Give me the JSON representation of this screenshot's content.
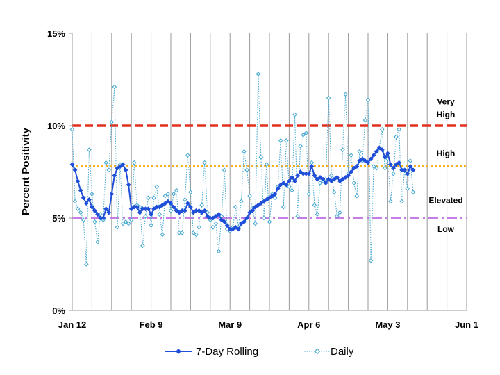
{
  "chart_data": {
    "type": "line",
    "ylabel": "Percent Positivity",
    "y_ticks": [
      "0%",
      "5%",
      "10%",
      "15%"
    ],
    "ylim": [
      0,
      15
    ],
    "x_ticks": [
      "Jan 12",
      "Feb 9",
      "Mar 9",
      "Apr 6",
      "May 3",
      "Jun 1"
    ],
    "x_tick_days": [
      0,
      28,
      56,
      84,
      112,
      140
    ],
    "xlim": [
      0,
      140
    ],
    "grid": "vertical",
    "legend_position": "bottom",
    "thresholds": [
      {
        "value": 10,
        "color": "#e2301e",
        "style": "dashed"
      },
      {
        "value": 7.8,
        "color": "#f5b324",
        "style": "dotted"
      },
      {
        "value": 5,
        "color": "#c77de6",
        "style": "dashdot"
      }
    ],
    "levels": [
      {
        "text": "Very",
        "y": 11.3
      },
      {
        "text": "High",
        "y": 10.6
      },
      {
        "text": "High",
        "y": 8.5
      },
      {
        "text": "Elevated",
        "y": 5.95
      },
      {
        "text": "Low",
        "y": 4.4
      }
    ],
    "series": [
      {
        "name": "7-Day Rolling",
        "color": "#1f4fd8",
        "marker": "diamond",
        "points": [
          [
            0,
            7.9
          ],
          [
            1,
            7.6
          ],
          [
            2,
            7.0
          ],
          [
            3,
            6.5
          ],
          [
            4,
            6.1
          ],
          [
            5,
            5.8
          ],
          [
            6,
            6.0
          ],
          [
            7,
            5.6
          ],
          [
            8,
            5.4
          ],
          [
            9,
            5.2
          ],
          [
            10,
            5.0
          ],
          [
            11,
            5.0
          ],
          [
            12,
            5.5
          ],
          [
            13,
            5.3
          ],
          [
            14,
            6.3
          ],
          [
            15,
            7.3
          ],
          [
            16,
            7.7
          ],
          [
            17,
            7.8
          ],
          [
            18,
            7.9
          ],
          [
            19,
            7.6
          ],
          [
            20,
            6.8
          ],
          [
            21,
            5.5
          ],
          [
            22,
            5.6
          ],
          [
            23,
            5.6
          ],
          [
            24,
            5.3
          ],
          [
            25,
            5.5
          ],
          [
            26,
            5.5
          ],
          [
            27,
            5.5
          ],
          [
            28,
            5.2
          ],
          [
            29,
            5.5
          ],
          [
            30,
            5.6
          ],
          [
            31,
            5.6
          ],
          [
            32,
            5.7
          ],
          [
            33,
            5.8
          ],
          [
            34,
            5.9
          ],
          [
            35,
            5.8
          ],
          [
            36,
            5.6
          ],
          [
            37,
            5.4
          ],
          [
            38,
            5.3
          ],
          [
            39,
            5.4
          ],
          [
            40,
            5.4
          ],
          [
            41,
            5.8
          ],
          [
            42,
            5.6
          ],
          [
            43,
            5.3
          ],
          [
            44,
            5.4
          ],
          [
            45,
            5.4
          ],
          [
            46,
            5.3
          ],
          [
            47,
            5.4
          ],
          [
            48,
            5.1
          ],
          [
            49,
            5.0
          ],
          [
            50,
            5.0
          ],
          [
            51,
            5.1
          ],
          [
            52,
            5.2
          ],
          [
            53,
            4.9
          ],
          [
            54,
            4.8
          ],
          [
            55,
            4.6
          ],
          [
            56,
            4.4
          ],
          [
            57,
            4.4
          ],
          [
            58,
            4.5
          ],
          [
            59,
            4.4
          ],
          [
            60,
            4.7
          ],
          [
            61,
            4.8
          ],
          [
            62,
            5.0
          ],
          [
            63,
            5.3
          ],
          [
            64,
            5.4
          ],
          [
            65,
            5.6
          ],
          [
            66,
            5.7
          ],
          [
            67,
            5.8
          ],
          [
            68,
            5.9
          ],
          [
            69,
            6.0
          ],
          [
            70,
            6.1
          ],
          [
            71,
            6.2
          ],
          [
            72,
            6.3
          ],
          [
            73,
            6.6
          ],
          [
            74,
            6.8
          ],
          [
            75,
            6.9
          ],
          [
            76,
            6.8
          ],
          [
            77,
            7.0
          ],
          [
            78,
            7.2
          ],
          [
            79,
            7.0
          ],
          [
            80,
            7.3
          ],
          [
            81,
            7.5
          ],
          [
            82,
            7.4
          ],
          [
            83,
            7.4
          ],
          [
            84,
            7.4
          ],
          [
            85,
            7.8
          ],
          [
            86,
            7.3
          ],
          [
            87,
            7.1
          ],
          [
            88,
            7.2
          ],
          [
            89,
            7.1
          ],
          [
            90,
            6.9
          ],
          [
            91,
            7.1
          ],
          [
            92,
            7.0
          ],
          [
            93,
            7.1
          ],
          [
            94,
            7.2
          ],
          [
            95,
            7.0
          ],
          [
            96,
            7.1
          ],
          [
            97,
            7.2
          ],
          [
            98,
            7.3
          ],
          [
            99,
            7.5
          ],
          [
            100,
            7.7
          ],
          [
            101,
            7.8
          ],
          [
            102,
            8.1
          ],
          [
            103,
            8.2
          ],
          [
            104,
            8.1
          ],
          [
            105,
            8.0
          ],
          [
            106,
            8.2
          ],
          [
            107,
            8.4
          ],
          [
            108,
            8.6
          ],
          [
            109,
            8.8
          ],
          [
            110,
            8.7
          ],
          [
            111,
            8.3
          ],
          [
            112,
            8.5
          ],
          [
            113,
            7.9
          ],
          [
            114,
            7.7
          ],
          [
            115,
            7.9
          ],
          [
            116,
            8.0
          ],
          [
            117,
            7.6
          ],
          [
            118,
            7.6
          ],
          [
            119,
            7.4
          ],
          [
            120,
            7.8
          ],
          [
            121,
            7.6
          ]
        ]
      },
      {
        "name": "Daily",
        "color": "#41a6cf",
        "marker": "diamond-open",
        "points": [
          [
            0,
            9.8
          ],
          [
            1,
            5.9
          ],
          [
            2,
            5.5
          ],
          [
            3,
            5.3
          ],
          [
            4,
            4.9
          ],
          [
            5,
            2.5
          ],
          [
            6,
            8.7
          ],
          [
            7,
            6.3
          ],
          [
            8,
            4.8
          ],
          [
            9,
            3.7
          ],
          [
            10,
            5.2
          ],
          [
            11,
            4.9
          ],
          [
            12,
            8.0
          ],
          [
            13,
            7.6
          ],
          [
            14,
            10.2
          ],
          [
            15,
            12.1
          ],
          [
            16,
            4.5
          ],
          [
            17,
            7.9
          ],
          [
            18,
            4.7
          ],
          [
            19,
            4.8
          ],
          [
            20,
            4.7
          ],
          [
            21,
            4.9
          ],
          [
            22,
            8.0
          ],
          [
            23,
            5.7
          ],
          [
            24,
            5.6
          ],
          [
            25,
            3.5
          ],
          [
            26,
            5.1
          ],
          [
            27,
            6.1
          ],
          [
            28,
            4.6
          ],
          [
            29,
            6.1
          ],
          [
            30,
            6.7
          ],
          [
            31,
            5.2
          ],
          [
            32,
            4.1
          ],
          [
            33,
            6.2
          ],
          [
            34,
            6.3
          ],
          [
            35,
            5.4
          ],
          [
            36,
            6.3
          ],
          [
            37,
            6.5
          ],
          [
            38,
            4.2
          ],
          [
            39,
            4.2
          ],
          [
            40,
            6.0
          ],
          [
            41,
            8.4
          ],
          [
            42,
            6.4
          ],
          [
            43,
            4.2
          ],
          [
            44,
            4.1
          ],
          [
            45,
            4.5
          ],
          [
            46,
            5.7
          ],
          [
            47,
            8.0
          ],
          [
            48,
            5.3
          ],
          [
            49,
            4.9
          ],
          [
            50,
            4.5
          ],
          [
            51,
            4.7
          ],
          [
            52,
            3.2
          ],
          [
            53,
            5.1
          ],
          [
            54,
            7.6
          ],
          [
            55,
            4.4
          ],
          [
            56,
            4.3
          ],
          [
            57,
            4.5
          ],
          [
            58,
            5.6
          ],
          [
            59,
            4.5
          ],
          [
            60,
            5.9
          ],
          [
            61,
            8.6
          ],
          [
            62,
            7.6
          ],
          [
            63,
            6.2
          ],
          [
            64,
            5.5
          ],
          [
            65,
            4.7
          ],
          [
            66,
            12.8
          ],
          [
            67,
            8.3
          ],
          [
            68,
            5.0
          ],
          [
            69,
            7.9
          ],
          [
            70,
            4.8
          ],
          [
            71,
            6.3
          ],
          [
            72,
            6.1
          ],
          [
            73,
            6.7
          ],
          [
            74,
            9.2
          ],
          [
            75,
            5.6
          ],
          [
            76,
            9.2
          ],
          [
            77,
            6.7
          ],
          [
            78,
            6.5
          ],
          [
            79,
            10.6
          ],
          [
            80,
            5.1
          ],
          [
            81,
            8.9
          ],
          [
            82,
            9.5
          ],
          [
            83,
            9.6
          ],
          [
            84,
            6.3
          ],
          [
            85,
            8.0
          ],
          [
            86,
            5.7
          ],
          [
            87,
            5.2
          ],
          [
            88,
            6.9
          ],
          [
            89,
            7.0
          ],
          [
            90,
            7.1
          ],
          [
            91,
            11.5
          ],
          [
            92,
            7.3
          ],
          [
            93,
            6.4
          ],
          [
            94,
            5.1
          ],
          [
            95,
            5.3
          ],
          [
            96,
            8.7
          ],
          [
            97,
            11.7
          ],
          [
            98,
            7.4
          ],
          [
            99,
            8.4
          ],
          [
            100,
            6.9
          ],
          [
            101,
            6.2
          ],
          [
            102,
            8.6
          ],
          [
            103,
            8.1
          ],
          [
            104,
            10.3
          ],
          [
            105,
            11.4
          ],
          [
            106,
            2.7
          ],
          [
            107,
            7.8
          ],
          [
            108,
            7.7
          ],
          [
            109,
            8.8
          ],
          [
            110,
            9.8
          ],
          [
            111,
            7.7
          ],
          [
            112,
            8.2
          ],
          [
            113,
            5.9
          ],
          [
            114,
            7.4
          ],
          [
            115,
            9.4
          ],
          [
            116,
            9.8
          ],
          [
            117,
            5.9
          ],
          [
            118,
            7.6
          ],
          [
            119,
            6.6
          ],
          [
            120,
            8.1
          ],
          [
            121,
            6.4
          ]
        ]
      }
    ]
  }
}
